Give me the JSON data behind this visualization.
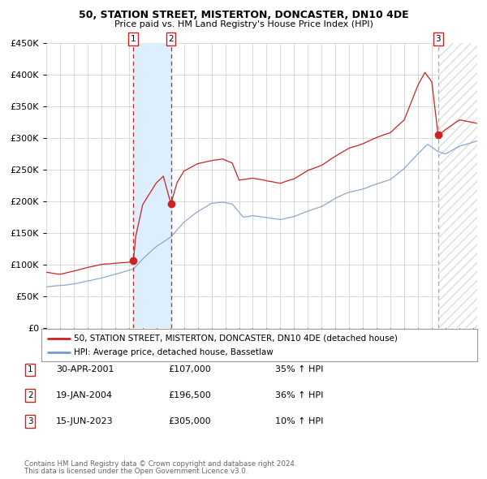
{
  "title1": "50, STATION STREET, MISTERTON, DONCASTER, DN10 4DE",
  "title2": "Price paid vs. HM Land Registry's House Price Index (HPI)",
  "ytick_vals": [
    0,
    50000,
    100000,
    150000,
    200000,
    250000,
    300000,
    350000,
    400000,
    450000
  ],
  "ylim": [
    0,
    450000
  ],
  "xlim_start": 1995.0,
  "xlim_end": 2026.3,
  "sale1_date": 2001.33,
  "sale1_price": 107000,
  "sale2_date": 2004.05,
  "sale2_price": 196500,
  "sale3_date": 2023.46,
  "sale3_price": 305000,
  "red_color": "#cc2222",
  "blue_color": "#7799cc",
  "dot_color": "#cc2222",
  "grid_color": "#cccccc",
  "shading_color": "#ddeeff",
  "legend_label_red": "50, STATION STREET, MISTERTON, DONCASTER, DN10 4DE (detached house)",
  "legend_label_blue": "HPI: Average price, detached house, Bassetlaw",
  "table_entries": [
    {
      "num": "1",
      "date": "30-APR-2001",
      "price": "£107,000",
      "pct": "35% ↑ HPI"
    },
    {
      "num": "2",
      "date": "19-JAN-2004",
      "price": "£196,500",
      "pct": "36% ↑ HPI"
    },
    {
      "num": "3",
      "date": "15-JUN-2023",
      "price": "£305,000",
      "pct": "10% ↑ HPI"
    }
  ],
  "footnote1": "Contains HM Land Registry data © Crown copyright and database right 2024.",
  "footnote2": "This data is licensed under the Open Government Licence v3.0.",
  "bg_color": "#ffffff",
  "hpi_anchors_t": [
    1995.0,
    1996.0,
    1997.0,
    1998.0,
    1999.0,
    2000.0,
    2001.33,
    2002.0,
    2003.0,
    2004.05,
    2005.0,
    2006.0,
    2007.0,
    2007.8,
    2008.5,
    2009.3,
    2010.0,
    2011.0,
    2012.0,
    2013.0,
    2014.0,
    2015.0,
    2016.0,
    2017.0,
    2018.0,
    2019.0,
    2020.0,
    2021.0,
    2022.0,
    2022.7,
    2023.46,
    2024.0,
    2025.0,
    2026.3
  ],
  "hpi_anchors_v": [
    65000,
    67000,
    70000,
    75000,
    80000,
    86000,
    94000,
    110000,
    130000,
    145000,
    168000,
    185000,
    198000,
    200000,
    197000,
    176000,
    178000,
    175000,
    172000,
    176000,
    185000,
    192000,
    205000,
    215000,
    220000,
    228000,
    235000,
    252000,
    275000,
    290000,
    278000,
    275000,
    287000,
    295000
  ],
  "red_anchors_t": [
    1995.0,
    1996.0,
    1997.0,
    1998.0,
    1999.0,
    2000.0,
    2001.0,
    2001.33,
    2001.5,
    2002.0,
    2003.0,
    2003.5,
    2004.05,
    2004.5,
    2005.0,
    2006.0,
    2007.0,
    2007.8,
    2008.5,
    2009.0,
    2010.0,
    2011.0,
    2012.0,
    2013.0,
    2014.0,
    2015.0,
    2016.0,
    2017.0,
    2018.0,
    2019.0,
    2020.0,
    2021.0,
    2022.0,
    2022.5,
    2023.0,
    2023.46,
    2024.0,
    2025.0,
    2026.3
  ],
  "red_anchors_v": [
    88000,
    85000,
    90000,
    96000,
    100000,
    102000,
    104000,
    107000,
    145000,
    195000,
    230000,
    240000,
    196500,
    230000,
    248000,
    260000,
    265000,
    268000,
    262000,
    235000,
    238000,
    234000,
    230000,
    237000,
    250000,
    258000,
    272000,
    285000,
    292000,
    302000,
    310000,
    330000,
    385000,
    405000,
    390000,
    305000,
    315000,
    330000,
    325000
  ]
}
